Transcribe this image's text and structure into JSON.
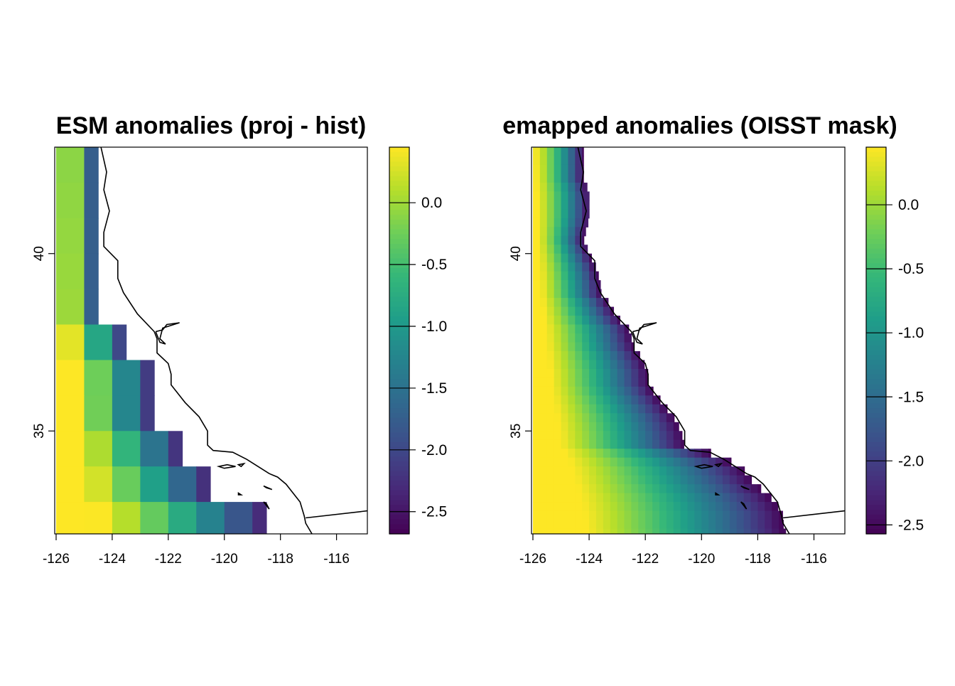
{
  "figure": {
    "background": "#ffffff"
  },
  "chart_data": [
    {
      "type": "heatmap",
      "title": "ESM anomalies (proj - hist)",
      "xlabel": "",
      "ylabel": "",
      "xlim": [
        -126.05,
        -114.9
      ],
      "ylim": [
        32.1,
        43.0
      ],
      "x_ticks": [
        -126,
        -124,
        -122,
        -120,
        -118,
        -116
      ],
      "x_tick_labels": [
        "-126",
        "-124",
        "-122",
        "-120",
        "-118",
        "-116"
      ],
      "y_ticks": [
        35,
        40
      ],
      "y_tick_labels": [
        "35",
        "40"
      ],
      "grid_step_deg": 1.0,
      "value_model": {
        "west_edge": -126,
        "west_value": 0.45,
        "coast_value": -2.45,
        "south_lift_per_deg": -0.03,
        "coast_sharpness": 1.5
      },
      "ocean_edge": [
        [
          43.0,
          -124.5
        ],
        [
          38.5,
          -124.5
        ],
        [
          38.5,
          -123.5
        ],
        [
          37.5,
          -123.5
        ],
        [
          37.5,
          -122.5
        ],
        [
          36.5,
          -122.5
        ],
        [
          35.5,
          -122.5
        ],
        [
          35.5,
          -121.5
        ],
        [
          34.5,
          -121.5
        ],
        [
          34.5,
          -120.5
        ],
        [
          33.5,
          -120.5
        ],
        [
          33.5,
          -118.5
        ],
        [
          32.5,
          -118.5
        ],
        [
          32.5,
          -117.5
        ],
        [
          32.1,
          -117.5
        ]
      ],
      "colorbar": {
        "min": -2.68,
        "max": 0.45,
        "ticks": [
          0.0,
          -0.5,
          -1.0,
          -1.5,
          -2.0,
          -2.5
        ],
        "tick_labels": [
          "0.0",
          "-0.5",
          "-1.0",
          "-1.5",
          "-2.0",
          "-2.5"
        ]
      },
      "colormap": "viridis"
    },
    {
      "type": "heatmap",
      "title": "emapped anomalies (OISST mask)",
      "xlabel": "",
      "ylabel": "",
      "xlim": [
        -126.05,
        -114.9
      ],
      "ylim": [
        32.1,
        43.0
      ],
      "x_ticks": [
        -126,
        -124,
        -122,
        -120,
        -118,
        -116
      ],
      "x_tick_labels": [
        "-126",
        "-124",
        "-122",
        "-120",
        "-118",
        "-116"
      ],
      "y_ticks": [
        35,
        40
      ],
      "y_tick_labels": [
        "35",
        "40"
      ],
      "grid_step_deg": 0.25,
      "value_model": {
        "west_edge": -126,
        "west_value": 0.45,
        "coast_value": -2.55,
        "south_lift_per_deg": -0.04,
        "coast_sharpness": 1.4
      },
      "ocean_edge": [
        [
          43.0,
          -124.2
        ],
        [
          42.0,
          -124.2
        ],
        [
          41.8,
          -124.0
        ],
        [
          41.3,
          -124.0
        ],
        [
          41.0,
          -124.0
        ],
        [
          40.4,
          -124.2
        ],
        [
          40.0,
          -124.0
        ],
        [
          39.7,
          -123.8
        ],
        [
          39.2,
          -123.6
        ],
        [
          38.9,
          -123.6
        ],
        [
          38.6,
          -123.3
        ],
        [
          38.2,
          -123.0
        ],
        [
          37.8,
          -122.5
        ],
        [
          37.5,
          -122.5
        ],
        [
          37.0,
          -122.1
        ],
        [
          36.6,
          -121.9
        ],
        [
          36.3,
          -121.9
        ],
        [
          35.9,
          -121.5
        ],
        [
          35.6,
          -121.2
        ],
        [
          35.3,
          -120.9
        ],
        [
          34.9,
          -120.7
        ],
        [
          34.5,
          -120.6
        ],
        [
          34.5,
          -120.4
        ],
        [
          34.4,
          -119.8
        ],
        [
          34.3,
          -119.3
        ],
        [
          34.1,
          -118.9
        ],
        [
          33.9,
          -118.5
        ],
        [
          33.7,
          -118.3
        ],
        [
          33.5,
          -118.1
        ],
        [
          33.2,
          -117.6
        ],
        [
          32.9,
          -117.3
        ],
        [
          32.6,
          -117.1
        ],
        [
          32.4,
          -117.1
        ],
        [
          32.1,
          -117.0
        ]
      ],
      "colorbar": {
        "min": -2.57,
        "max": 0.45,
        "ticks": [
          0.0,
          -0.5,
          -1.0,
          -1.5,
          -2.0,
          -2.5
        ],
        "tick_labels": [
          "0.0",
          "-0.5",
          "-1.0",
          "-1.5",
          "-2.0",
          "-2.5"
        ]
      },
      "colormap": "viridis"
    }
  ],
  "map_lines": {
    "coastline": [
      [
        -124.4,
        43.0
      ],
      [
        -124.2,
        42.3
      ],
      [
        -124.3,
        41.8
      ],
      [
        -124.1,
        41.2
      ],
      [
        -124.3,
        40.6
      ],
      [
        -124.3,
        40.2
      ],
      [
        -123.8,
        39.8
      ],
      [
        -123.8,
        39.3
      ],
      [
        -123.6,
        38.9
      ],
      [
        -123.1,
        38.3
      ],
      [
        -122.5,
        37.8
      ],
      [
        -122.4,
        37.6
      ],
      [
        -122.4,
        37.2
      ],
      [
        -122.0,
        36.9
      ],
      [
        -121.9,
        36.6
      ],
      [
        -121.9,
        36.3
      ],
      [
        -121.4,
        35.8
      ],
      [
        -120.9,
        35.4
      ],
      [
        -120.6,
        35.0
      ],
      [
        -120.6,
        34.6
      ],
      [
        -120.4,
        34.45
      ],
      [
        -119.7,
        34.4
      ],
      [
        -119.2,
        34.2
      ],
      [
        -118.8,
        34.0
      ],
      [
        -118.4,
        33.8
      ],
      [
        -118.1,
        33.7
      ],
      [
        -117.8,
        33.5
      ],
      [
        -117.3,
        33.0
      ],
      [
        -117.15,
        32.6
      ],
      [
        -117.1,
        32.4
      ],
      [
        -116.8,
        32.0
      ]
    ],
    "bay": [
      [
        -122.45,
        37.8
      ],
      [
        -122.2,
        37.85
      ],
      [
        -122.05,
        38.0
      ],
      [
        -121.6,
        38.05
      ],
      [
        -122.2,
        37.9
      ],
      [
        -122.3,
        37.6
      ],
      [
        -122.1,
        37.45
      ],
      [
        -122.3,
        37.5
      ],
      [
        -122.45,
        37.8
      ]
    ],
    "border": [
      [
        -117.1,
        32.55
      ],
      [
        -114.9,
        32.75
      ]
    ],
    "islands": [
      [
        [
          -120.2,
          34.0
        ],
        [
          -119.9,
          34.05
        ],
        [
          -119.6,
          34.0
        ],
        [
          -120.0,
          33.95
        ],
        [
          -120.2,
          34.0
        ]
      ],
      [
        [
          -119.5,
          34.05
        ],
        [
          -119.3,
          34.08
        ],
        [
          -119.4,
          34.0
        ],
        [
          -119.5,
          34.05
        ]
      ],
      [
        [
          -118.6,
          33.45
        ],
        [
          -118.3,
          33.35
        ],
        [
          -118.5,
          33.4
        ],
        [
          -118.6,
          33.45
        ]
      ],
      [
        [
          -118.6,
          33.0
        ],
        [
          -118.4,
          32.8
        ],
        [
          -118.5,
          32.95
        ],
        [
          -118.6,
          33.0
        ]
      ],
      [
        [
          -119.5,
          33.25
        ],
        [
          -119.4,
          33.2
        ],
        [
          -119.5,
          33.2
        ],
        [
          -119.5,
          33.25
        ]
      ]
    ]
  }
}
